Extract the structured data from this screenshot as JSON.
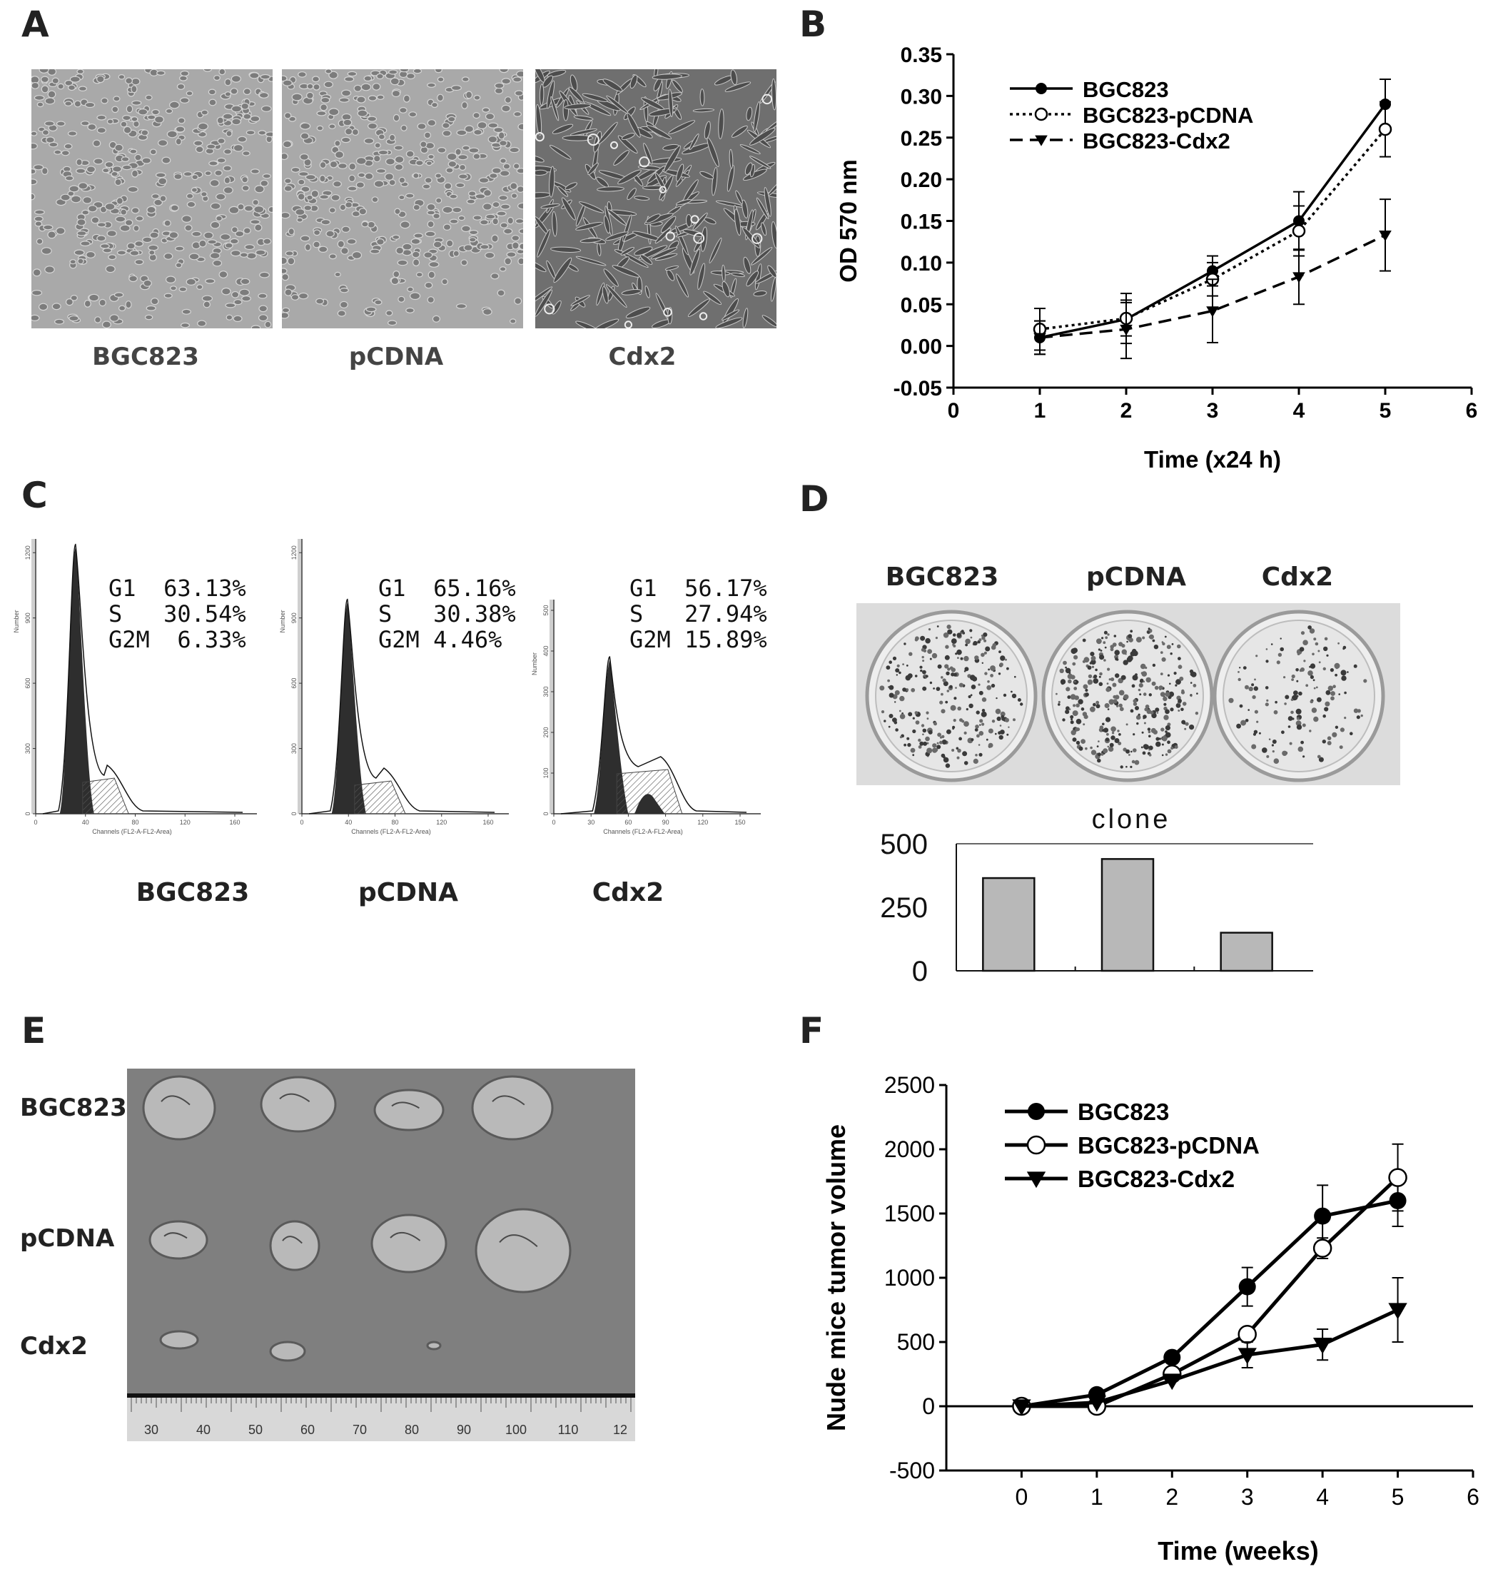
{
  "panels": {
    "A": {
      "letter": "A",
      "captions": [
        "BGC823",
        "pCDNA",
        "Cdx2"
      ]
    },
    "B": {
      "letter": "B",
      "chart_data": {
        "type": "line",
        "xlabel": "Time (x24 h)",
        "ylabel": "OD 570 nm",
        "xlim": [
          0,
          6
        ],
        "ylim": [
          -0.05,
          0.35
        ],
        "xticks": [
          "0",
          "1",
          "2",
          "3",
          "4",
          "5",
          "6"
        ],
        "yticks": [
          "-0.05",
          "0.00",
          "0.05",
          "0.10",
          "0.15",
          "0.20",
          "0.25",
          "0.30",
          "0.35"
        ],
        "x": [
          1,
          2,
          3,
          4,
          5
        ],
        "legend_position": "top-left",
        "series": [
          {
            "name": "BGC823",
            "values": [
              0.01,
              0.032,
              0.09,
              0.15,
              0.29
            ],
            "errors": [
              0.02,
              0.02,
              0.018,
              0.035,
              0.03
            ],
            "marker": "filled-circle",
            "line": "solid"
          },
          {
            "name": "BGC823-pCDNA",
            "values": [
              0.02,
              0.033,
              0.08,
              0.138,
              0.26
            ],
            "errors": [
              0.025,
              0.03,
              0.02,
              0.03,
              0.033
            ],
            "marker": "open-circle",
            "line": "dotted"
          },
          {
            "name": "BGC823-Cdx2",
            "values": [
              0.01,
              0.02,
              0.042,
              0.083,
              0.133
            ],
            "errors": [
              0.02,
              0.035,
              0.038,
              0.033,
              0.043
            ],
            "marker": "filled-triangle-down",
            "line": "dashed"
          }
        ]
      }
    },
    "C": {
      "letter": "C",
      "captions": [
        "BGC823",
        "pCDNA",
        "Cdx2"
      ],
      "histograms": [
        {
          "lines": [
            "G1  63.13%",
            "S   30.54%",
            "G2M  6.33%"
          ],
          "y_axis_label": "Number",
          "x_axis_label": "Channels (FL2-A-FL2-Area)",
          "yticks": [
            "0",
            "300",
            "600",
            "900",
            "1200"
          ],
          "xticks": [
            "0",
            "40",
            "80",
            "120",
            "160"
          ]
        },
        {
          "lines": [
            "G1  65.16%",
            "S   30.38%",
            "G2M 4.46%"
          ],
          "y_axis_label": "Number",
          "x_axis_label": "Channels (FL2-A-FL2-Area)",
          "yticks": [
            "0",
            "300",
            "600",
            "900",
            "1200"
          ],
          "xticks": [
            "0",
            "40",
            "80",
            "120",
            "160"
          ]
        },
        {
          "lines": [
            "G1  56.17%",
            "S   27.94%",
            "G2M 15.89%"
          ],
          "y_axis_label": "Number",
          "x_axis_label": "Channels (FL2-A-FL2-Area)",
          "yticks": [
            "0",
            "100",
            "200",
            "300",
            "400",
            "500"
          ],
          "xticks": [
            "0",
            "30",
            "60",
            "90",
            "120",
            "150"
          ]
        }
      ]
    },
    "D": {
      "letter": "D",
      "captions": [
        "BGC823",
        "pCDNA",
        "Cdx2"
      ],
      "chart_data": {
        "type": "bar",
        "title": "clone",
        "categories": [
          "BGC823",
          "pCDNA",
          "Cdx2"
        ],
        "values": [
          365,
          440,
          150
        ],
        "ylim": [
          0,
          500
        ],
        "yticks": [
          "0",
          "250",
          "500"
        ],
        "color": "#b8b8b8"
      }
    },
    "E": {
      "letter": "E",
      "row_labels": [
        "BGC823",
        "pCDNA",
        "Cdx2"
      ],
      "ruler_numbers": [
        "30",
        "40",
        "50",
        "60",
        "70",
        "80",
        "90",
        "100",
        "110",
        "12"
      ]
    },
    "F": {
      "letter": "F",
      "chart_data": {
        "type": "line",
        "xlabel": "Time (weeks)",
        "ylabel": "Nude mice tumor volume",
        "xlim": [
          -1,
          6
        ],
        "ylim": [
          -500,
          2500
        ],
        "xticks": [
          "0",
          "1",
          "2",
          "3",
          "4",
          "5",
          "6"
        ],
        "yticks": [
          "-500",
          "0",
          "500",
          "1000",
          "1500",
          "2000",
          "2500"
        ],
        "x": [
          0,
          1,
          2,
          3,
          4,
          5
        ],
        "legend_position": "top-left",
        "series": [
          {
            "name": "BGC823",
            "values": [
              0,
              90,
              380,
              930,
              1480,
              1600
            ],
            "errors": [
              0,
              0,
              0,
              150,
              240,
              200
            ],
            "marker": "filled-circle"
          },
          {
            "name": "BGC823-pCDNA",
            "values": [
              0,
              0,
              250,
              560,
              1230,
              1780
            ],
            "errors": [
              0,
              0,
              0,
              0,
              80,
              260
            ],
            "marker": "open-circle"
          },
          {
            "name": "BGC823-Cdx2",
            "values": [
              0,
              30,
              200,
              400,
              480,
              750
            ],
            "errors": [
              0,
              0,
              0,
              100,
              120,
              250
            ],
            "marker": "filled-triangle-down"
          }
        ]
      }
    }
  },
  "colors": {
    "micrograph_bg": "#a9a9a9",
    "micrograph_dark_bg": "#6f6f6f",
    "tray_bg": "#7f7f7f",
    "plate_bg": "#dcdcdc",
    "bar_fill": "#b8b8b8"
  }
}
